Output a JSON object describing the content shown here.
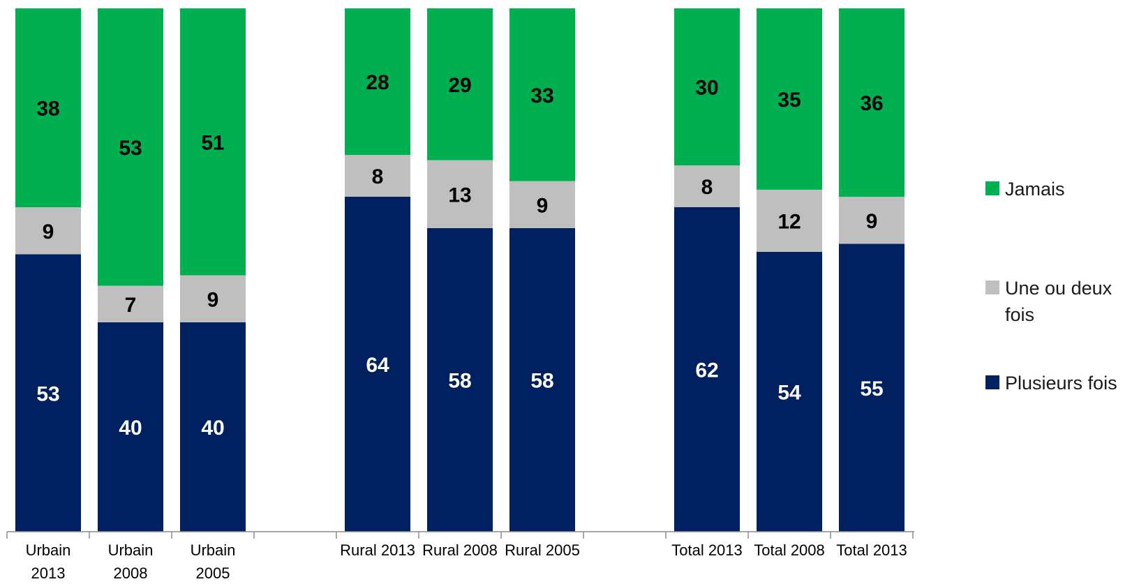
{
  "chart_data": {
    "type": "bar",
    "stacked": true,
    "percent_stacked": true,
    "categories": [
      [
        "Urbain",
        "2013"
      ],
      [
        "Urbain",
        "2008"
      ],
      [
        "Urbain",
        "2005"
      ],
      [
        "Rural 2013"
      ],
      [
        "Rural 2008"
      ],
      [
        "Rural 2005"
      ],
      [
        "Total 2013"
      ],
      [
        "Total 2008"
      ],
      [
        "Total 2013"
      ]
    ],
    "series": [
      {
        "name": "Plusieurs fois",
        "color": "#002060",
        "label_color": "#ffffff",
        "values": [
          53,
          40,
          40,
          64,
          58,
          58,
          62,
          54,
          55
        ]
      },
      {
        "name": "Une ou deux fois",
        "color": "#bfbfbf",
        "label_color": "#000000",
        "values": [
          9,
          7,
          9,
          8,
          13,
          9,
          8,
          12,
          9
        ]
      },
      {
        "name": "Jamais",
        "color": "#00b050",
        "label_color": "#000000",
        "values": [
          38,
          53,
          51,
          28,
          29,
          33,
          30,
          35,
          36
        ]
      }
    ],
    "legend": {
      "position": "right",
      "entries": [
        {
          "lines": [
            "Jamais"
          ],
          "color": "#00b050"
        },
        {
          "lines": [
            "Une ou deux",
            "fois"
          ],
          "color": "#bfbfbf"
        },
        {
          "lines": [
            "Plusieurs fois"
          ],
          "color": "#002060"
        }
      ]
    },
    "title": "",
    "xlabel": "",
    "ylabel": "",
    "ylim": [
      0,
      100
    ],
    "grid": false,
    "groups": [
      [
        0,
        1,
        2
      ],
      [
        3,
        4,
        5
      ],
      [
        6,
        7,
        8
      ]
    ]
  }
}
